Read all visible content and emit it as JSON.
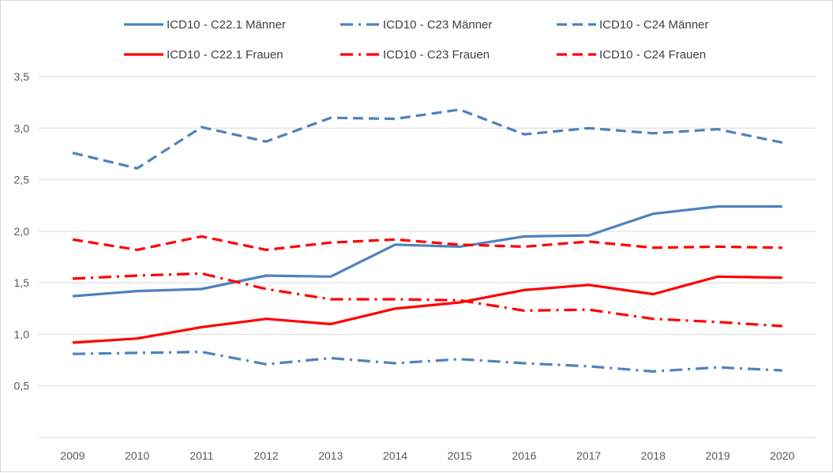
{
  "chart_data": {
    "type": "line",
    "title": "",
    "xlabel": "",
    "ylabel": "",
    "ylim": [
      0,
      3.5
    ],
    "yticks": [
      "0,5",
      "1,0",
      "1,5",
      "2,0",
      "2,5",
      "3,0",
      "3,5"
    ],
    "ytick_values": [
      0.5,
      1.0,
      1.5,
      2.0,
      2.5,
      3.0,
      3.5
    ],
    "grid": "horizontal",
    "legend_position": "top",
    "categories": [
      "2009",
      "2010",
      "2011",
      "2012",
      "2013",
      "2014",
      "2015",
      "2016",
      "2017",
      "2018",
      "2019",
      "2020"
    ],
    "series": [
      {
        "name": "ICD10 - C22.1 Männer",
        "color": "#4f81bd",
        "dash": "solid",
        "values": [
          1.37,
          1.42,
          1.44,
          1.57,
          1.56,
          1.87,
          1.85,
          1.95,
          1.96,
          2.17,
          2.24,
          2.24
        ]
      },
      {
        "name": "ICD10 - C23 Männer",
        "color": "#4f81bd",
        "dash": "dashdot",
        "values": [
          0.81,
          0.82,
          0.83,
          0.71,
          0.77,
          0.72,
          0.76,
          0.72,
          0.69,
          0.64,
          0.68,
          0.65
        ]
      },
      {
        "name": "ICD10 - C24 Männer",
        "color": "#4f81bd",
        "dash": "dash",
        "values": [
          2.76,
          2.61,
          3.01,
          2.87,
          3.1,
          3.09,
          3.18,
          2.94,
          3.0,
          2.95,
          2.99,
          2.86
        ]
      },
      {
        "name": "ICD10 - C22.1 Frauen",
        "color": "#ff0000",
        "dash": "solid",
        "values": [
          0.92,
          0.96,
          1.07,
          1.15,
          1.1,
          1.25,
          1.31,
          1.43,
          1.48,
          1.39,
          1.56,
          1.55
        ]
      },
      {
        "name": "ICD10 - C23 Frauen",
        "color": "#ff0000",
        "dash": "dashdot",
        "values": [
          1.54,
          1.57,
          1.59,
          1.44,
          1.34,
          1.34,
          1.33,
          1.23,
          1.24,
          1.15,
          1.12,
          1.08
        ]
      },
      {
        "name": "ICD10 - C24 Frauen",
        "color": "#ff0000",
        "dash": "dash",
        "values": [
          1.92,
          1.82,
          1.95,
          1.82,
          1.89,
          1.92,
          1.87,
          1.85,
          1.9,
          1.84,
          1.85,
          1.84
        ]
      }
    ]
  }
}
